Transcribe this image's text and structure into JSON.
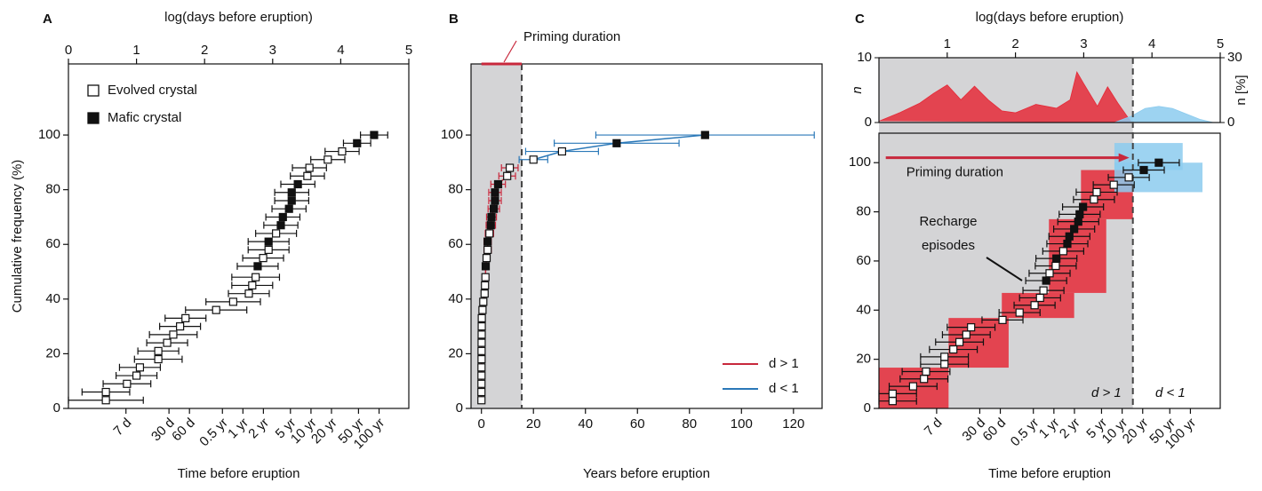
{
  "chart_data": [
    {
      "type": "scatter",
      "label": "A",
      "title": "log(days before eruption)",
      "xlabel": "Time before eruption",
      "ylabel": "Cumulative frequency (%)",
      "xlim": [
        0,
        5
      ],
      "ylim": [
        0,
        126
      ],
      "xticks": [
        0,
        1,
        2,
        3,
        4,
        5
      ],
      "xaxis_position": "top",
      "yticks": [
        0,
        20,
        40,
        60,
        80,
        100
      ],
      "time_ticks": [
        {
          "value": 0.845,
          "label": "7 d"
        },
        {
          "value": 1.477,
          "label": "30 d"
        },
        {
          "value": 1.778,
          "label": "60 d"
        },
        {
          "value": 2.262,
          "label": "0.5 yr"
        },
        {
          "value": 2.563,
          "label": "1 yr"
        },
        {
          "value": 2.864,
          "label": "2 yr"
        },
        {
          "value": 3.261,
          "label": "5 yr"
        },
        {
          "value": 3.563,
          "label": "10 yr"
        },
        {
          "value": 3.864,
          "label": "20 yr"
        },
        {
          "value": 4.261,
          "label": "50 yr"
        },
        {
          "value": 4.563,
          "label": "100 yr"
        }
      ],
      "legend": "upper-left",
      "legend_style": "marker",
      "series": [
        {
          "name": "Evolved crystal",
          "color": "#111111",
          "x": [
            0.55,
            0.55,
            0.86,
            1.0,
            1.05,
            1.32,
            1.32,
            1.45,
            1.54,
            1.64,
            1.72,
            2.17,
            2.42,
            2.65,
            2.7,
            2.75,
            2.86,
            2.94,
            3.05,
            3.51,
            3.54,
            3.81,
            4.02
          ],
          "y": [
            3,
            6,
            9,
            12,
            15,
            18,
            21,
            24,
            27,
            30,
            33,
            36,
            39,
            42,
            45,
            48,
            55,
            58,
            64,
            85,
            88,
            91,
            94
          ],
          "xerr": [
            0.55,
            0.35,
            0.35,
            0.3,
            0.3,
            0.35,
            0.3,
            0.3,
            0.35,
            0.3,
            0.3,
            0.45,
            0.4,
            0.3,
            0.3,
            0.35,
            0.3,
            0.3,
            0.3,
            0.25,
            0.25,
            0.25,
            0.25
          ],
          "filled": [
            false,
            false,
            false,
            false,
            false,
            false,
            false,
            false,
            false,
            false,
            false,
            false,
            false,
            false,
            false,
            false,
            false,
            false,
            false,
            false,
            false,
            false,
            false
          ]
        },
        {
          "name": "Mafic crystal",
          "color": "#111111",
          "x": [
            2.78,
            2.94,
            3.12,
            3.15,
            3.24,
            3.28,
            3.28,
            3.37,
            4.24,
            4.49
          ],
          "y": [
            52,
            61,
            67,
            70,
            73,
            76,
            79,
            82,
            97,
            100
          ],
          "xerr": [
            0.3,
            0.3,
            0.25,
            0.25,
            0.25,
            0.25,
            0.25,
            0.25,
            0.2,
            0.2
          ],
          "filled": [
            true,
            true,
            true,
            true,
            true,
            true,
            true,
            true,
            true,
            true
          ]
        }
      ]
    },
    {
      "type": "scatter",
      "label": "B",
      "xlabel": "Years before eruption",
      "xlim": [
        -4,
        131
      ],
      "ylim": [
        0,
        126
      ],
      "xticks": [
        0,
        20,
        40,
        60,
        80,
        100,
        120
      ],
      "xaxis_position": "bottom",
      "yticks": [
        0,
        20,
        40,
        60,
        80,
        100
      ],
      "legend": "lower-right",
      "legend_style": "line",
      "line": true,
      "priming": {
        "label": "Priming duration",
        "end": 15.5,
        "color": "#c8283c"
      },
      "series": [
        {
          "name": "d > 1",
          "color": "#c8283c",
          "x": [
            0.01,
            0.01,
            0.02,
            0.03,
            0.03,
            0.06,
            0.06,
            0.08,
            0.1,
            0.12,
            0.14,
            0.41,
            0.72,
            1.22,
            1.37,
            1.54,
            1.65,
            1.99,
            2.39,
            2.39,
            3.08,
            3.61,
            3.87,
            4.76,
            5.22,
            5.22,
            6.42,
            9.9,
            10.9
          ],
          "y": [
            3,
            6,
            9,
            12,
            15,
            18,
            21,
            24,
            27,
            30,
            33,
            36,
            39,
            42,
            45,
            48,
            52,
            55,
            58,
            61,
            64,
            67,
            70,
            73,
            76,
            79,
            82,
            85,
            88
          ],
          "xerr": [
            0,
            0,
            0,
            0,
            0,
            0,
            0,
            0,
            0,
            0,
            0,
            0.3,
            0.5,
            0.8,
            0.9,
            1,
            1,
            1.2,
            1.4,
            1.4,
            1.6,
            1.8,
            1.9,
            2.2,
            2.4,
            2.4,
            2.8,
            3.2,
            3.2
          ],
          "filled": [
            false,
            false,
            false,
            false,
            false,
            false,
            false,
            false,
            false,
            false,
            false,
            false,
            false,
            false,
            false,
            false,
            true,
            false,
            false,
            true,
            false,
            true,
            true,
            true,
            true,
            true,
            true,
            false,
            false
          ]
        },
        {
          "name": "d < 1",
          "color": "#2a78b8",
          "x": [
            20,
            31,
            52,
            86
          ],
          "y": [
            91,
            94,
            97,
            100
          ],
          "xerr": [
            5.5,
            14,
            24,
            42
          ],
          "filled": [
            false,
            false,
            true,
            true
          ]
        }
      ]
    },
    {
      "type": "scatter",
      "label": "C",
      "title": "log(days before eruption)",
      "xlabel": "Time before eruption",
      "xlim": [
        0,
        5
      ],
      "ylim": [
        0,
        112
      ],
      "xticks": [
        1,
        2,
        3,
        4,
        5
      ],
      "xaxis_position": "top",
      "yticks": [
        0,
        20,
        40,
        60,
        80,
        100
      ],
      "time_ticks": [
        {
          "value": 0.845,
          "label": "7 d"
        },
        {
          "value": 1.477,
          "label": "30 d"
        },
        {
          "value": 1.778,
          "label": "60 d"
        },
        {
          "value": 2.262,
          "label": "0.5 yr"
        },
        {
          "value": 2.563,
          "label": "1 yr"
        },
        {
          "value": 2.864,
          "label": "2 yr"
        },
        {
          "value": 3.261,
          "label": "5 yr"
        },
        {
          "value": 3.563,
          "label": "10 yr"
        },
        {
          "value": 3.864,
          "label": "20 yr"
        },
        {
          "value": 4.261,
          "label": "50 yr"
        },
        {
          "value": 4.563,
          "label": "100 yr"
        }
      ],
      "legend": "none",
      "priming": {
        "label": "Priming duration",
        "end": 3.72,
        "color": "#c8283c"
      },
      "boxes": [
        {
          "x0": 0,
          "x1": 1.02,
          "y0": 0,
          "y1": 16.6,
          "color": "#e52a38"
        },
        {
          "x0": 1.02,
          "x1": 1.9,
          "y0": 16.6,
          "y1": 36.8,
          "color": "#e52a38"
        },
        {
          "x0": 1.8,
          "x1": 2.86,
          "y0": 36.8,
          "y1": 47,
          "color": "#e52a38"
        },
        {
          "x0": 2.49,
          "x1": 3.33,
          "y0": 47,
          "y1": 77,
          "color": "#e52a38"
        },
        {
          "x0": 2.96,
          "x1": 3.72,
          "y0": 77,
          "y1": 97,
          "color": "#e52a38"
        },
        {
          "x0": 3.45,
          "x1": 4.45,
          "y0": 97,
          "y1": 108,
          "color": "#8ccbee"
        },
        {
          "x0": 3.45,
          "x1": 4.74,
          "y0": 88,
          "y1": 100,
          "color": "#8ccbee"
        }
      ],
      "annotations": [
        {
          "text": "d > 1",
          "color": "#c8283c"
        },
        {
          "text": "d < 1",
          "color": "#2a78b8"
        }
      ],
      "callout": {
        "lines": [
          "Recharge",
          "episodes"
        ]
      },
      "density": {
        "ylabel": "n",
        "y2label": "n [%]",
        "ylim": [
          0,
          10
        ],
        "yticks": [
          0,
          10
        ],
        "y2lim": [
          0,
          30
        ],
        "y2ticks": [
          0,
          30
        ],
        "series": [
          {
            "color": "#e52a38",
            "x": [
              0,
              0.3,
              0.6,
              0.8,
              1.0,
              1.2,
              1.4,
              1.6,
              1.8,
              2.0,
              2.3,
              2.6,
              2.8,
              2.9,
              3.0,
              3.2,
              3.35,
              3.5,
              3.7
            ],
            "values": [
              0.2,
              1.5,
              3,
              4.5,
              5.8,
              3.5,
              5.6,
              3.5,
              1.8,
              1.5,
              2.8,
              2.2,
              3.5,
              7.8,
              6,
              2.5,
              5.5,
              3,
              0
            ]
          },
          {
            "color": "#8ccbee",
            "axis": "y2",
            "x": [
              3.45,
              3.7,
              3.9,
              4.1,
              4.3,
              4.5,
              4.7,
              4.9
            ],
            "values": [
              0,
              3,
              6.5,
              7.5,
              6.5,
              4,
              1.5,
              0
            ]
          }
        ]
      },
      "series": [
        {
          "color": "#111111",
          "x": [
            0.2,
            0.2,
            0.5,
            0.66,
            0.69,
            0.96,
            0.96,
            1.09,
            1.18,
            1.28,
            1.35,
            1.81,
            2.06,
            2.28,
            2.36,
            2.41,
            2.45,
            2.5,
            2.59,
            2.6,
            2.7,
            2.76,
            2.79,
            2.86,
            2.92,
            2.94,
            2.99,
            3.15,
            3.19,
            3.44,
            3.66,
            3.88,
            4.1
          ],
          "y": [
            3,
            6,
            9,
            12,
            15,
            18,
            21,
            24,
            27,
            30,
            33,
            36,
            39,
            42,
            45,
            48,
            52,
            55,
            58,
            61,
            64,
            67,
            70,
            73,
            76,
            79,
            82,
            85,
            88,
            91,
            94,
            97,
            100
          ],
          "xerr": [
            0.35,
            0.35,
            0.35,
            0.35,
            0.35,
            0.35,
            0.35,
            0.35,
            0.35,
            0.35,
            0.35,
            0.3,
            0.3,
            0.3,
            0.3,
            0.3,
            0.3,
            0.3,
            0.3,
            0.3,
            0.3,
            0.3,
            0.3,
            0.3,
            0.3,
            0.3,
            0.3,
            0.3,
            0.3,
            0.3,
            0.3,
            0.3,
            0.3
          ],
          "filled": [
            false,
            false,
            false,
            false,
            false,
            false,
            false,
            false,
            false,
            false,
            false,
            false,
            false,
            false,
            false,
            false,
            true,
            false,
            false,
            true,
            false,
            true,
            true,
            true,
            true,
            true,
            true,
            false,
            false,
            false,
            false,
            true,
            true
          ]
        }
      ]
    }
  ]
}
